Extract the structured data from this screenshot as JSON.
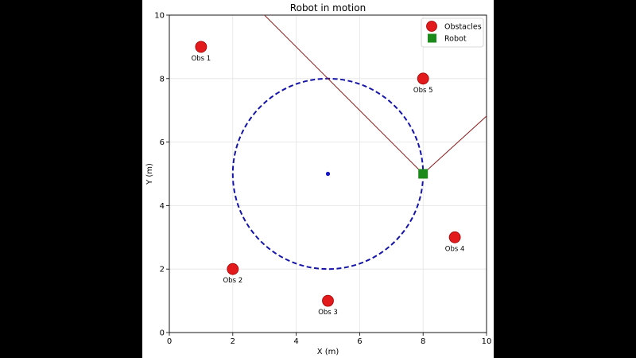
{
  "chart_data": {
    "type": "scatter",
    "title": "Robot in motion",
    "xlabel": "X (m)",
    "ylabel": "Y (m)",
    "xlim": [
      0,
      10
    ],
    "ylim": [
      0,
      10
    ],
    "xticks": [
      0,
      2,
      4,
      6,
      8,
      10
    ],
    "yticks": [
      0,
      2,
      4,
      6,
      8,
      10
    ],
    "grid": true,
    "legend_position": "top-right",
    "series": [
      {
        "name": "Obstacles",
        "marker": "circle",
        "color": "#e31a1c",
        "points": [
          {
            "label": "Obs 1",
            "x": 1,
            "y": 9
          },
          {
            "label": "Obs 2",
            "x": 2,
            "y": 2
          },
          {
            "label": "Obs 3",
            "x": 5,
            "y": 1
          },
          {
            "label": "Obs 4",
            "x": 9,
            "y": 3
          },
          {
            "label": "Obs 5",
            "x": 8,
            "y": 8
          }
        ]
      },
      {
        "name": "Robot",
        "marker": "square",
        "color": "#1a8a1a",
        "points": [
          {
            "x": 8,
            "y": 5
          }
        ]
      }
    ],
    "path_circle": {
      "center": [
        5,
        5
      ],
      "radius": 3,
      "color": "#1414a8",
      "style": "dashed"
    },
    "center_point": {
      "x": 5,
      "y": 5,
      "color": "#1414c8"
    },
    "sensor_rays": {
      "color": "#8b1a1a",
      "origin": [
        8,
        5
      ],
      "ends": [
        [
          2.9,
          10.1
        ],
        [
          10.2,
          7.0
        ]
      ]
    }
  }
}
